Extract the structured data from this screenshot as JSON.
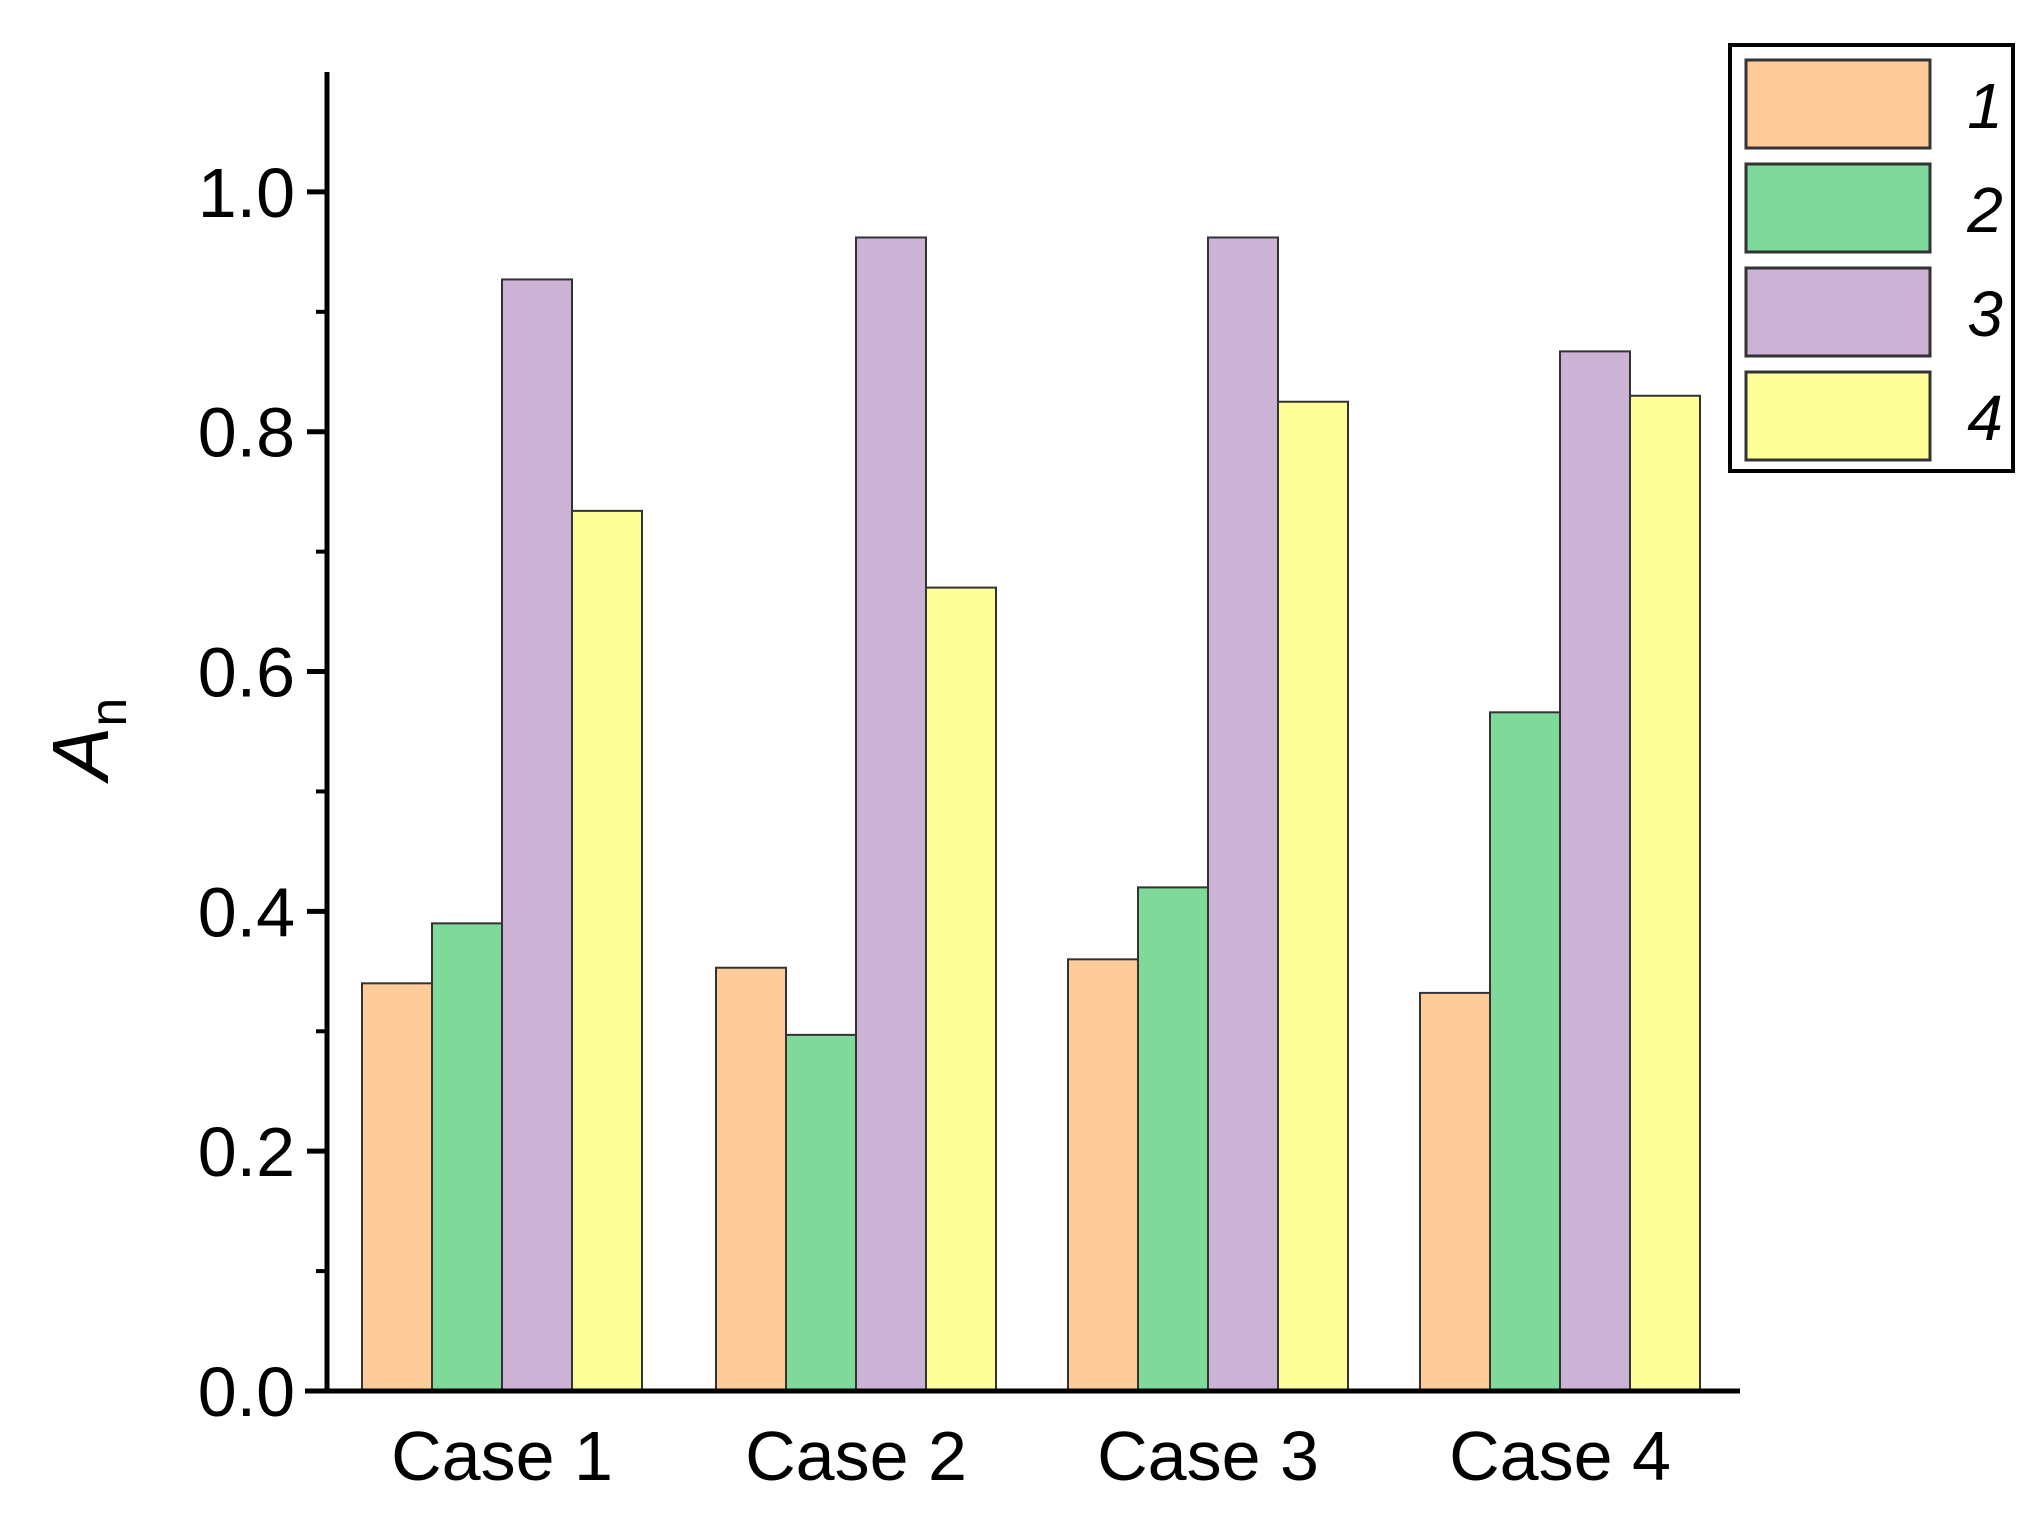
{
  "chart_data": {
    "type": "bar",
    "title": "",
    "xlabel": "",
    "ylabel": "A",
    "ylabel_subscript": "n",
    "categories": [
      "Case 1",
      "Case 2",
      "Case 3",
      "Case 4"
    ],
    "ylim": [
      0,
      1.1
    ],
    "yticks": [
      "0.0",
      "0.2",
      "0.4",
      "0.6",
      "0.8",
      "1.0"
    ],
    "grid": false,
    "legend_position": "top-right",
    "series": [
      {
        "name": "1",
        "color": "#FFCC99",
        "values": [
          0.34,
          0.353,
          0.36,
          0.332
        ]
      },
      {
        "name": "2",
        "color": "#7ED99B",
        "values": [
          0.39,
          0.297,
          0.42,
          0.566
        ]
      },
      {
        "name": "3",
        "color": "#CCB3D6",
        "values": [
          0.927,
          0.962,
          0.962,
          0.867
        ]
      },
      {
        "name": "4",
        "color": "#FFFF99",
        "values": [
          0.734,
          0.67,
          0.825,
          0.83
        ]
      }
    ]
  }
}
